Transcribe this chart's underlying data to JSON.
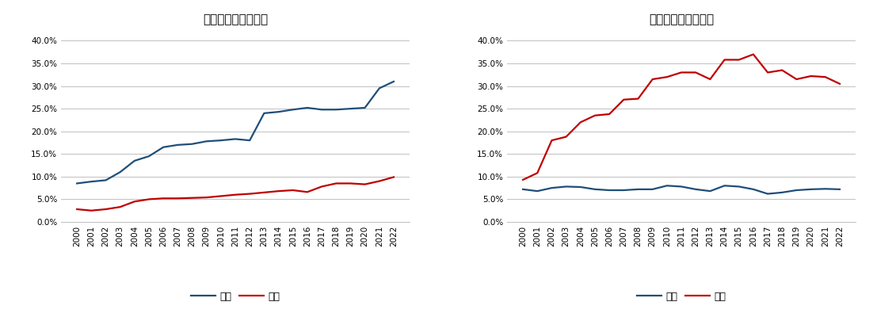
{
  "years": [
    2000,
    2001,
    2002,
    2003,
    2004,
    2005,
    2006,
    2007,
    2008,
    2009,
    2010,
    2011,
    2012,
    2013,
    2014,
    2015,
    2016,
    2017,
    2018,
    2019,
    2020,
    2021,
    2022
  ],
  "export_china": [
    2.8,
    2.5,
    2.8,
    3.3,
    4.5,
    5.0,
    5.2,
    5.2,
    5.3,
    5.4,
    5.7,
    6.0,
    6.2,
    6.5,
    6.8,
    7.0,
    6.6,
    7.8,
    8.5,
    8.5,
    8.3,
    9.0,
    9.9
  ],
  "export_taiwan": [
    8.5,
    8.9,
    9.2,
    11.0,
    13.5,
    14.5,
    16.5,
    17.0,
    17.2,
    17.8,
    18.0,
    18.3,
    18.0,
    24.0,
    24.3,
    24.8,
    25.2,
    24.8,
    24.8,
    25.0,
    25.2,
    29.5,
    31.0
  ],
  "import_china": [
    9.3,
    10.8,
    18.0,
    18.8,
    22.0,
    23.5,
    23.8,
    27.0,
    27.2,
    31.5,
    32.0,
    33.0,
    33.0,
    31.5,
    35.8,
    35.8,
    37.0,
    33.0,
    33.5,
    31.5,
    32.2,
    32.0,
    30.5
  ],
  "import_taiwan": [
    7.2,
    6.8,
    7.5,
    7.8,
    7.7,
    7.2,
    7.0,
    7.0,
    7.2,
    7.2,
    8.0,
    7.8,
    7.2,
    6.8,
    8.0,
    7.8,
    7.2,
    6.2,
    6.5,
    7.0,
    7.2,
    7.3,
    7.2
  ],
  "title_left": "輸出に占めるシェア",
  "title_right": "輸入に占めるシェア",
  "label_china": "中国",
  "label_taiwan": "台湾",
  "color_china": "#c00000",
  "color_taiwan": "#1f4e79",
  "ylim_min": 0.0,
  "ylim_max": 0.42,
  "yticks": [
    0.0,
    0.05,
    0.1,
    0.15,
    0.2,
    0.25,
    0.3,
    0.35,
    0.4
  ],
  "background_color": "#ffffff",
  "grid_color": "#c0c0c0",
  "title_fontsize": 11,
  "tick_fontsize": 7.5,
  "legend_fontsize": 9,
  "line_width": 1.6
}
